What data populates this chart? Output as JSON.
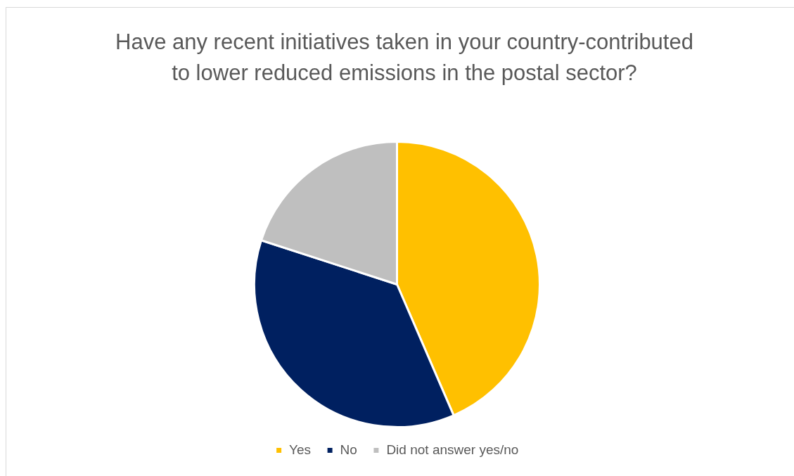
{
  "chart_data": {
    "type": "pie",
    "title": "Have any recent initiatives taken in your country-contributed to lower reduced emissions in the postal sector?",
    "categories": [
      "Yes",
      "No",
      "Did not answer yes/no"
    ],
    "values": [
      43.5,
      36.5,
      20
    ],
    "colors": [
      "#ffc000",
      "#002060",
      "#bfbfbf"
    ],
    "legend": "bottom"
  }
}
